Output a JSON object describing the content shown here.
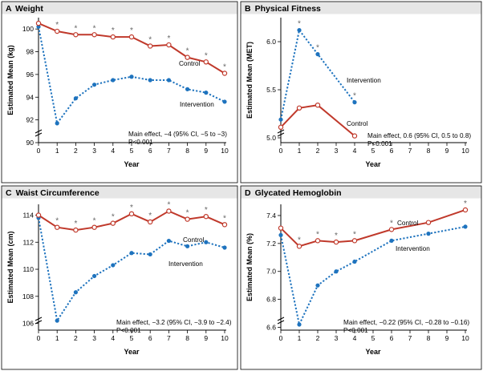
{
  "colors": {
    "control": "#c0392b",
    "intervention": "#1e73be",
    "header_band": "#e6e6e6"
  },
  "chart_data": [
    {
      "type": "line",
      "panel": "A",
      "title": "Weight",
      "ylabel": "Estimated Mean (kg)",
      "xlabel": "Year",
      "ylim": [
        90,
        101
      ],
      "yticks": [
        "90",
        "92",
        "94",
        "96",
        "98",
        "100"
      ],
      "xticks": [
        "0",
        "1",
        "2",
        "3",
        "4",
        "5",
        "6",
        "7",
        "8",
        "9",
        "10"
      ],
      "series": [
        {
          "name": "Control",
          "x": [
            0,
            1,
            2,
            3,
            4,
            5,
            6,
            7,
            8,
            9,
            10
          ],
          "values": [
            100.5,
            99.8,
            99.5,
            99.5,
            99.3,
            99.3,
            98.5,
            98.6,
            97.5,
            97.1,
            96.1
          ]
        },
        {
          "name": "Intervention",
          "x": [
            0,
            1,
            2,
            3,
            4,
            5,
            6,
            7,
            8,
            9,
            10
          ],
          "values": [
            100.2,
            91.7,
            93.9,
            95.1,
            95.5,
            95.8,
            95.5,
            95.5,
            94.7,
            94.4,
            93.6
          ]
        }
      ],
      "significance_at": [
        1,
        2,
        3,
        4,
        5,
        6,
        7,
        8,
        9,
        10
      ],
      "annotation": [
        "Main effect, −4 (95% CI, −5 to −3)",
        "P<0.001"
      ]
    },
    {
      "type": "line",
      "panel": "B",
      "title": "Physical Fitness",
      "ylabel": "Estimated Mean (MET)",
      "xlabel": "Year",
      "ylim": [
        4.95,
        6.25
      ],
      "yticks": [
        "5.0",
        "5.5",
        "6.0"
      ],
      "xticks": [
        "0",
        "1",
        "2",
        "3",
        "4",
        "5",
        "6",
        "7",
        "8",
        "9",
        "10"
      ],
      "series": [
        {
          "name": "Control",
          "x": [
            0,
            1,
            2,
            4
          ],
          "values": [
            5.11,
            5.31,
            5.34,
            5.02
          ]
        },
        {
          "name": "Intervention",
          "x": [
            0,
            1,
            2,
            4
          ],
          "values": [
            5.19,
            6.12,
            5.87,
            5.37
          ]
        }
      ],
      "significance_at": [
        1,
        2,
        4
      ],
      "annotation": [
        "Main effect, 0.6 (95% CI, 0.5 to 0.8)",
        "P<0.001"
      ]
    },
    {
      "type": "line",
      "panel": "C",
      "title": "Waist Circumference",
      "ylabel": "Estimated Mean (cm)",
      "xlabel": "Year",
      "ylim": [
        105.5,
        114.8
      ],
      "yticks": [
        "106",
        "108",
        "110",
        "112",
        "114"
      ],
      "xticks": [
        "0",
        "1",
        "2",
        "3",
        "4",
        "5",
        "6",
        "7",
        "8",
        "9",
        "10"
      ],
      "series": [
        {
          "name": "Control",
          "x": [
            0,
            1,
            2,
            3,
            4,
            5,
            6,
            7,
            8,
            9,
            10
          ],
          "values": [
            114.0,
            113.1,
            112.9,
            113.1,
            113.4,
            114.1,
            113.5,
            114.3,
            113.7,
            113.9,
            113.3
          ]
        },
        {
          "name": "Intervention",
          "x": [
            0,
            1,
            2,
            3,
            4,
            5,
            6,
            7,
            8,
            9,
            10
          ],
          "values": [
            113.8,
            106.2,
            108.3,
            109.5,
            110.3,
            111.2,
            111.1,
            112.1,
            111.7,
            112.0,
            111.6
          ]
        }
      ],
      "significance_at": [
        1,
        2,
        3,
        4,
        5,
        6,
        7,
        8,
        9,
        10
      ],
      "annotation": [
        "Main effect, −3.2 (95% CI, −3.9 to −2.4)",
        "P<0.001"
      ]
    },
    {
      "type": "line",
      "panel": "D",
      "title": "Glycated Hemoglobin",
      "ylabel": "Estimated Mean (%)",
      "xlabel": "Year",
      "ylim": [
        6.58,
        7.48
      ],
      "yticks": [
        "6.6",
        "6.8",
        "7.0",
        "7.2",
        "7.4"
      ],
      "xticks": [
        "0",
        "1",
        "2",
        "3",
        "4",
        "5",
        "6",
        "7",
        "8",
        "9",
        "10"
      ],
      "series": [
        {
          "name": "Control",
          "x": [
            0,
            1,
            2,
            3,
            4,
            6,
            8,
            10
          ],
          "values": [
            7.31,
            7.18,
            7.22,
            7.21,
            7.22,
            7.3,
            7.35,
            7.44
          ]
        },
        {
          "name": "Intervention",
          "x": [
            0,
            1,
            2,
            3,
            4,
            6,
            8,
            10
          ],
          "values": [
            7.26,
            6.62,
            6.9,
            7.0,
            7.07,
            7.22,
            7.27,
            7.32
          ]
        }
      ],
      "significance_at": [
        1,
        2,
        3,
        4,
        6,
        10
      ],
      "annotation": [
        "Main effect, −0.22 (95% CI, −0.28 to −0.16)",
        "P<0.001"
      ]
    }
  ]
}
